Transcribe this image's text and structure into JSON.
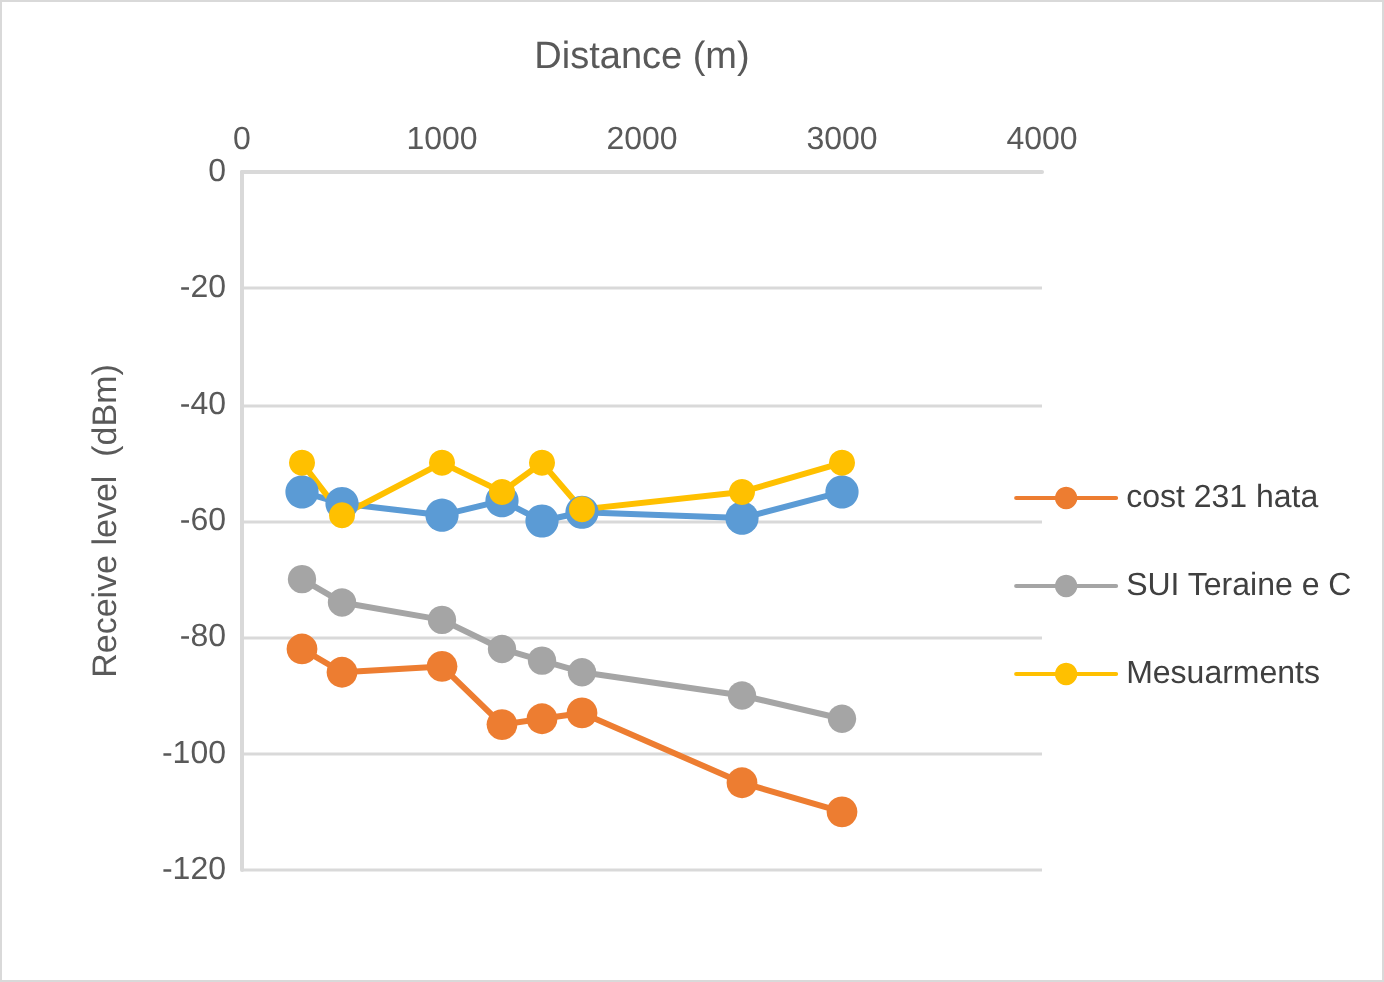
{
  "chart_data": {
    "type": "line",
    "xlabel": "Distance (m)",
    "ylabel": "Receive level  (dBm)",
    "x": [
      300,
      500,
      1000,
      1300,
      1500,
      1700,
      2500,
      3000
    ],
    "series": [
      {
        "color": "#5b9bd5",
        "values": [
          -55,
          -57,
          -59,
          -56.5,
          -60,
          -58.5,
          -59.5,
          -55
        ]
      },
      {
        "name": "cost 231 hata",
        "color": "#ed7d31",
        "values": [
          -82,
          -86,
          -85,
          -95,
          -94,
          -93,
          -105,
          -110
        ]
      },
      {
        "name": "SUI Teraine e C",
        "color": "#a5a5a5",
        "values": [
          -70,
          -74,
          -77,
          -82,
          -84,
          -86,
          -90,
          -94
        ]
      },
      {
        "name": "Mesuarments",
        "color": "#ffc000",
        "values": [
          -50,
          -59,
          -50,
          -55,
          -50,
          -58,
          -55,
          -50
        ]
      }
    ],
    "xlim": [
      0,
      4000
    ],
    "xticks": [
      0,
      1000,
      2000,
      3000,
      4000
    ],
    "ylim": [
      -120,
      0
    ],
    "yticks": [
      -120,
      -100,
      -80,
      -60,
      -40,
      -20,
      0
    ],
    "grid": "y",
    "legend": "right",
    "marker": "circle",
    "line_style": "solid"
  }
}
